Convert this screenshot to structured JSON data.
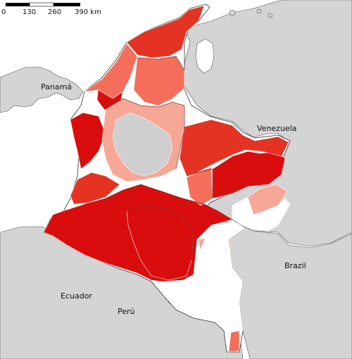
{
  "scale_bar": {
    "ticks": [
      "0",
      "130",
      "260",
      "390 km"
    ]
  },
  "labels": {
    "panama": "Panamá",
    "venezuela": "Venezuela",
    "brazil": "Brazil",
    "ecuador": "Ecuador",
    "peru": "Perú"
  },
  "colors": {
    "sea": "#ffffff",
    "neighbor_land": "#d4d4d4",
    "dark_red": "#d90d0d",
    "red": "#e43323",
    "light_red": "#f46e5b",
    "pink": "#f7a796",
    "no_data": "#ffffff",
    "grey_municipality": "#cfcfcf"
  }
}
